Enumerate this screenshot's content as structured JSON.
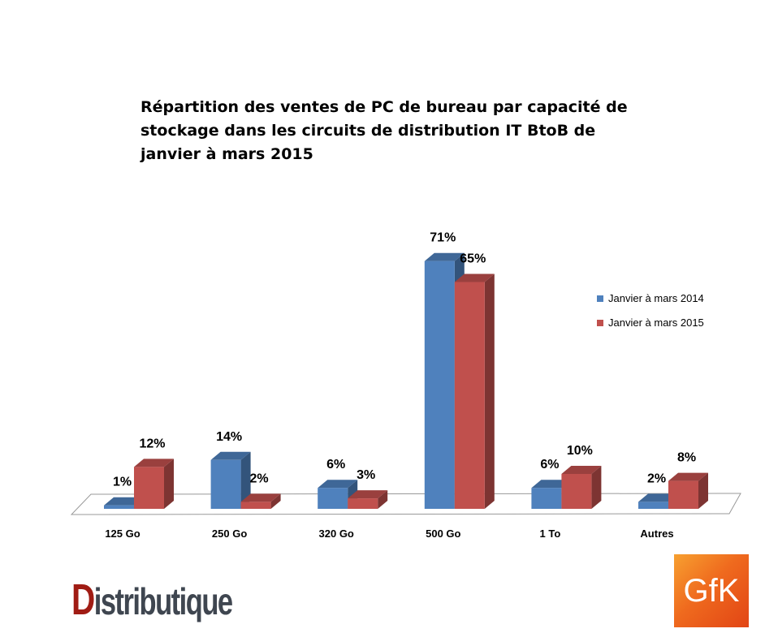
{
  "chart_data": {
    "type": "bar",
    "title": "Répartition des ventes de PC de bureau par capacité de stockage dans les circuits de distribution IT BtoB de janvier à mars 2015",
    "categories": [
      "125 Go",
      "250 Go",
      "320 Go",
      "500 Go",
      "1 To",
      "Autres"
    ],
    "series": [
      {
        "name": "Janvier à mars 2014",
        "color": "#4f81bd",
        "values": [
          1,
          14,
          6,
          71,
          6,
          2
        ]
      },
      {
        "name": "Janvier à mars 2015",
        "color": "#c0504d",
        "values": [
          12,
          2,
          3,
          65,
          10,
          8
        ]
      }
    ],
    "value_suffix": "%",
    "xlabel": "",
    "ylabel": "",
    "ylim": [
      0,
      75
    ],
    "grid": false,
    "legend": "right",
    "style": "3d-column"
  },
  "logos": {
    "left": "Distributique",
    "right": "GfK"
  }
}
